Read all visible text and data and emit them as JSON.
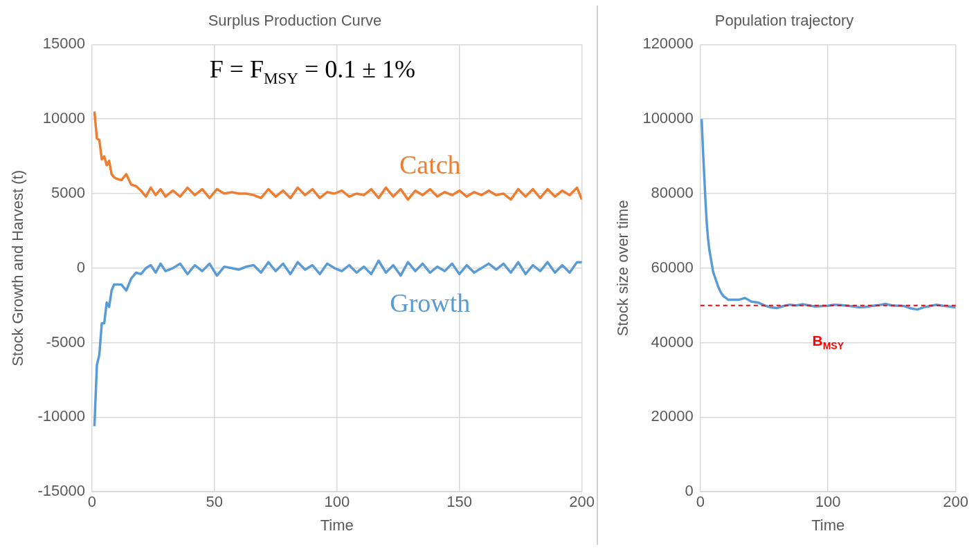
{
  "chart_data": [
    {
      "type": "line",
      "title": "Surplus Production Curve",
      "xlabel": "Time",
      "ylabel": "Stock Growth and Harvest (t)",
      "xlim": [
        0,
        200
      ],
      "xticks": [
        0,
        50,
        100,
        150,
        200
      ],
      "ylim": [
        -15000,
        15000
      ],
      "yticks": [
        -15000,
        -10000,
        -5000,
        0,
        5000,
        10000,
        15000
      ],
      "grid": true,
      "legend": false,
      "marker": "none",
      "line_style": "solid",
      "annotations": [
        "F = F$_{MSY}$ = 0.1 ± 1%"
      ],
      "x": [
        1,
        2,
        3,
        4,
        5,
        6,
        7,
        8,
        9,
        10,
        12,
        14,
        16,
        18,
        20,
        22,
        24,
        26,
        28,
        30,
        33,
        36,
        39,
        42,
        45,
        48,
        51,
        54,
        57,
        60,
        63,
        66,
        69,
        72,
        75,
        78,
        81,
        84,
        87,
        90,
        93,
        96,
        99,
        102,
        105,
        108,
        111,
        114,
        117,
        120,
        123,
        126,
        129,
        132,
        135,
        138,
        141,
        144,
        147,
        150,
        153,
        156,
        159,
        162,
        165,
        168,
        171,
        174,
        177,
        180,
        183,
        186,
        189,
        192,
        195,
        198,
        200
      ],
      "series": [
        {
          "name": "Catch",
          "color": "#ed7d31",
          "values": [
            10500,
            8700,
            8600,
            7300,
            7500,
            6900,
            7200,
            6300,
            6100,
            6000,
            5900,
            6300,
            5600,
            5500,
            5200,
            4800,
            5400,
            4900,
            5300,
            4800,
            5200,
            4800,
            5400,
            4900,
            5300,
            4700,
            5300,
            5000,
            5100,
            5000,
            5000,
            4900,
            4700,
            5300,
            4800,
            5200,
            4700,
            5400,
            4900,
            5300,
            4700,
            5100,
            5000,
            5200,
            4800,
            5000,
            4900,
            5300,
            4700,
            5400,
            4800,
            5300,
            4600,
            5200,
            4900,
            5300,
            4800,
            5100,
            4900,
            5200,
            4800,
            5100,
            4900,
            5200,
            4900,
            5000,
            4600,
            5300,
            4800,
            5300,
            4700,
            5300,
            4800,
            5200,
            4900,
            5400,
            4600
          ]
        },
        {
          "name": "Growth",
          "color": "#5b9bd5",
          "values": [
            -10600,
            -6500,
            -5800,
            -3700,
            -3700,
            -2300,
            -2600,
            -1500,
            -1100,
            -1100,
            -1100,
            -1500,
            -700,
            -300,
            -400,
            0,
            200,
            -300,
            300,
            -200,
            0,
            300,
            -400,
            200,
            -200,
            300,
            -500,
            100,
            0,
            -100,
            100,
            200,
            -300,
            400,
            -200,
            300,
            -400,
            400,
            -100,
            200,
            -400,
            300,
            0,
            -200,
            200,
            -300,
            100,
            -400,
            500,
            -300,
            200,
            -500,
            400,
            -200,
            300,
            -300,
            100,
            -200,
            300,
            -400,
            200,
            -300,
            0,
            300,
            -100,
            300,
            -300,
            400,
            -400,
            200,
            -200,
            400,
            -300,
            200,
            -300,
            400,
            400
          ]
        }
      ]
    },
    {
      "type": "line",
      "title": "Population trajectory",
      "xlabel": "Time",
      "ylabel": "Stock size over time",
      "xlim": [
        0,
        200
      ],
      "xticks": [
        0,
        100,
        200
      ],
      "ylim": [
        0,
        120000
      ],
      "yticks": [
        0,
        20000,
        40000,
        60000,
        80000,
        100000,
        120000
      ],
      "grid": true,
      "legend": false,
      "marker": "none",
      "line_style": "solid",
      "ref_lines": [
        {
          "axis": "y",
          "value": 50000,
          "label": "B$_{MSY}$",
          "color": "#ff0000",
          "line_style": "dashed"
        }
      ],
      "x": [
        1,
        2,
        3,
        4,
        5,
        6,
        7,
        8,
        10,
        12,
        14,
        16,
        18,
        20,
        22,
        25,
        30,
        35,
        40,
        45,
        50,
        55,
        60,
        65,
        70,
        75,
        80,
        85,
        90,
        95,
        100,
        105,
        110,
        115,
        120,
        125,
        130,
        135,
        140,
        145,
        150,
        155,
        160,
        165,
        170,
        175,
        180,
        185,
        190,
        195,
        200
      ],
      "series": [
        {
          "color": "#5b9bd5",
          "values": [
            100000,
            92000,
            85000,
            78000,
            72000,
            68000,
            65000,
            63000,
            59000,
            57000,
            55000,
            53500,
            52500,
            52000,
            51500,
            51500,
            51500,
            52000,
            51000,
            50800,
            50000,
            49500,
            49300,
            49800,
            50200,
            50000,
            50300,
            50000,
            49700,
            49800,
            49900,
            50200,
            50100,
            49900,
            49700,
            49500,
            49600,
            49900,
            50100,
            50400,
            50000,
            49900,
            49800,
            49200,
            48900,
            49500,
            49800,
            50200,
            49900,
            49700,
            49500
          ]
        }
      ]
    }
  ]
}
